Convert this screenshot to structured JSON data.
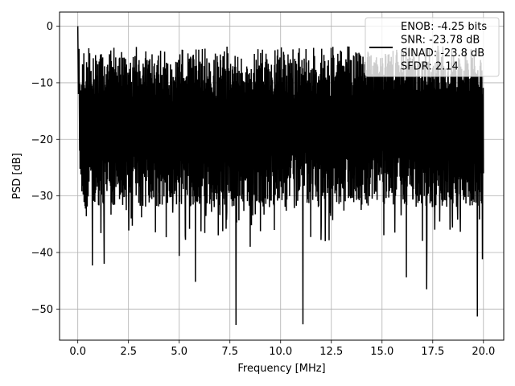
{
  "chart_data": {
    "type": "line",
    "title": "",
    "xlabel": "Frequency [MHz]",
    "ylabel": "PSD [dB]",
    "xlim": [
      -0.9,
      21.0
    ],
    "ylim": [
      -55.5,
      2.5
    ],
    "x_ticks": [
      0.0,
      2.5,
      5.0,
      7.5,
      10.0,
      12.5,
      15.0,
      17.5,
      20.0
    ],
    "x_tick_labels": [
      "0.0",
      "2.5",
      "5.0",
      "7.5",
      "10.0",
      "12.5",
      "15.0",
      "17.5",
      "20.0"
    ],
    "y_ticks": [
      0,
      -10,
      -20,
      -30,
      -40,
      -50
    ],
    "y_tick_labels": [
      "0",
      "−10",
      "−20",
      "−30",
      "−40",
      "−50"
    ],
    "grid": true,
    "legend_position": "top-right",
    "series": [
      {
        "color": "#000000",
        "x_range": [
          0.0,
          20.0
        ],
        "noise_band": [
          -30,
          -5
        ],
        "peak": {
          "x": 0.0,
          "y": 0.0
        },
        "dips": [
          {
            "x": 0.72,
            "y": -42.3
          },
          {
            "x": 1.3,
            "y": -42.0
          },
          {
            "x": 5.0,
            "y": -40.6
          },
          {
            "x": 5.8,
            "y": -45.2
          },
          {
            "x": 7.8,
            "y": -52.8
          },
          {
            "x": 8.5,
            "y": -39.0
          },
          {
            "x": 11.1,
            "y": -52.7
          },
          {
            "x": 12.2,
            "y": -38.0
          },
          {
            "x": 16.2,
            "y": -44.4
          },
          {
            "x": 17.2,
            "y": -46.5
          },
          {
            "x": 19.7,
            "y": -51.3
          },
          {
            "x": 19.95,
            "y": -41.2
          }
        ]
      }
    ],
    "legend": [
      "ENOB: -4.25 bits",
      "SNR: -23.78 dB",
      "SINAD: -23.8 dB",
      "SFDR: 2.14"
    ]
  }
}
